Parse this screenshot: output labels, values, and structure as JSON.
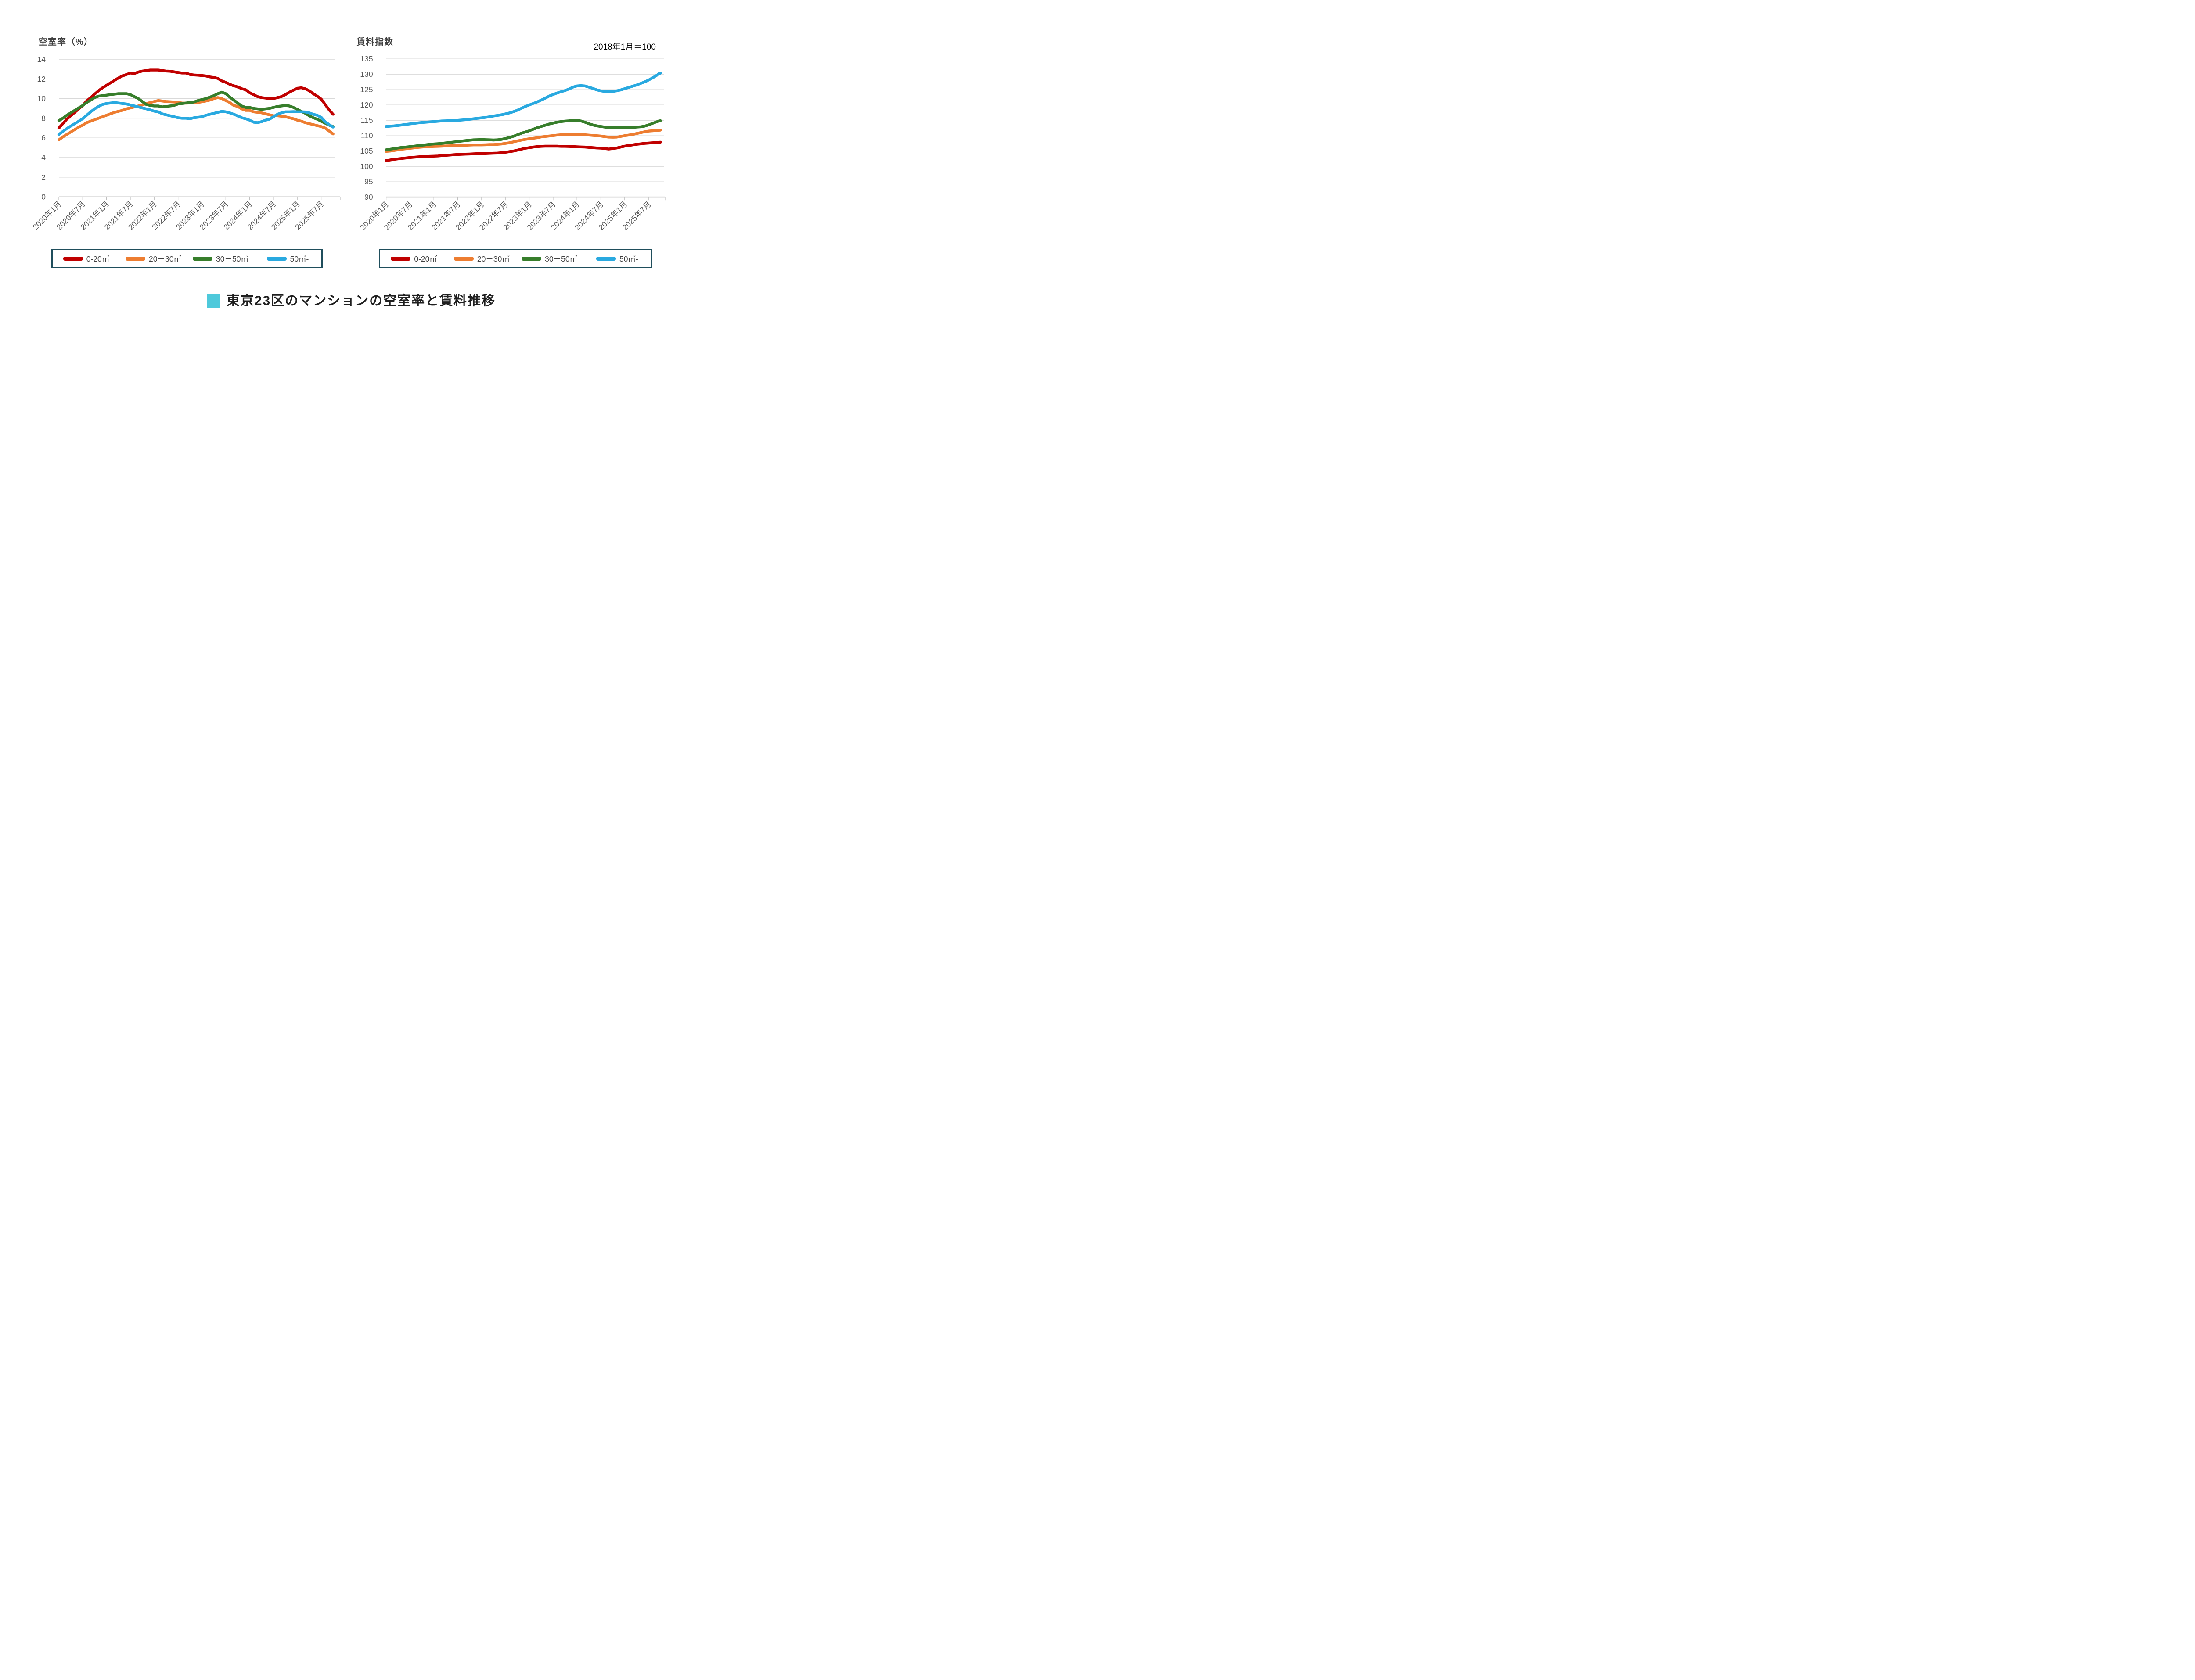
{
  "page": {
    "background": "#ffffff"
  },
  "bottom_title": {
    "text": "東京23区のマンションの空室率と賃料推移",
    "bullet_color": "#4ec9db"
  },
  "colors": {
    "red": "#c00000",
    "orange": "#ed7d31",
    "green": "#377e2b",
    "blue": "#29a9e0",
    "gridline": "#d9d9d9",
    "tick_text": "#595959",
    "legend_border": "#1f4e5c"
  },
  "chart_data": [
    {
      "type": "line",
      "title": "空室率（%）",
      "ylabel": "",
      "ylim": [
        0,
        14
      ],
      "yticks": [
        14,
        12,
        10,
        8,
        6,
        4,
        2,
        0
      ],
      "grid": "horizontal",
      "legend_position": "bottom",
      "x_tick_interval": 6,
      "x_tick_labels": [
        "2020年1月",
        "2020年7月",
        "2021年1月",
        "2021年7月",
        "2022年1月",
        "2022年7月",
        "2023年1月",
        "2023年7月",
        "2024年1月",
        "2024年7月",
        "2025年1月",
        "2025年7月"
      ],
      "x_range_note": "monthly data 2020-01 through 2025-10",
      "series": [
        {
          "name": "0-20㎡",
          "color": "#c00000",
          "values": [
            7.0,
            7.45,
            7.9,
            8.25,
            8.6,
            8.95,
            9.3,
            9.75,
            10.1,
            10.45,
            10.8,
            11.1,
            11.35,
            11.6,
            11.85,
            12.1,
            12.3,
            12.45,
            12.6,
            12.55,
            12.7,
            12.8,
            12.85,
            12.9,
            12.9,
            12.9,
            12.85,
            12.8,
            12.78,
            12.72,
            12.65,
            12.6,
            12.6,
            12.45,
            12.4,
            12.38,
            12.35,
            12.3,
            12.2,
            12.15,
            12.05,
            11.8,
            11.65,
            11.45,
            11.3,
            11.2,
            11.0,
            10.9,
            10.6,
            10.4,
            10.2,
            10.1,
            10.05,
            10.0,
            10.0,
            10.1,
            10.2,
            10.4,
            10.65,
            10.85,
            11.05,
            11.1,
            11.0,
            10.8,
            10.5,
            10.25,
            9.95,
            9.4,
            8.85,
            8.4
          ]
        },
        {
          "name": "20－30㎡",
          "color": "#ed7d31",
          "values": [
            5.8,
            6.1,
            6.35,
            6.6,
            6.85,
            7.1,
            7.3,
            7.55,
            7.7,
            7.85,
            8.0,
            8.15,
            8.3,
            8.45,
            8.6,
            8.7,
            8.8,
            8.95,
            9.05,
            9.15,
            9.25,
            9.35,
            9.5,
            9.6,
            9.7,
            9.8,
            9.75,
            9.7,
            9.68,
            9.65,
            9.6,
            9.55,
            9.53,
            9.55,
            9.57,
            9.6,
            9.68,
            9.75,
            9.85,
            10.0,
            10.1,
            10.0,
            9.8,
            9.6,
            9.3,
            9.2,
            8.95,
            8.8,
            8.8,
            8.65,
            8.6,
            8.55,
            8.45,
            8.35,
            8.25,
            8.25,
            8.2,
            8.15,
            8.05,
            7.95,
            7.8,
            7.7,
            7.55,
            7.45,
            7.35,
            7.25,
            7.15,
            7.0,
            6.7,
            6.4
          ]
        },
        {
          "name": "30－50㎡",
          "color": "#377e2b",
          "values": [
            7.75,
            8.0,
            8.3,
            8.55,
            8.8,
            9.05,
            9.3,
            9.6,
            9.85,
            10.1,
            10.25,
            10.3,
            10.35,
            10.4,
            10.45,
            10.5,
            10.5,
            10.5,
            10.4,
            10.2,
            10.0,
            9.7,
            9.4,
            9.3,
            9.25,
            9.25,
            9.15,
            9.2,
            9.25,
            9.3,
            9.45,
            9.5,
            9.55,
            9.6,
            9.65,
            9.8,
            9.9,
            10.0,
            10.15,
            10.3,
            10.5,
            10.65,
            10.5,
            10.15,
            9.85,
            9.55,
            9.25,
            9.1,
            9.1,
            9.0,
            8.95,
            8.9,
            8.95,
            9.0,
            9.1,
            9.2,
            9.25,
            9.3,
            9.25,
            9.1,
            8.9,
            8.7,
            8.5,
            8.25,
            8.05,
            7.9,
            7.7,
            7.5,
            7.3,
            7.15
          ]
        },
        {
          "name": "50㎡-",
          "color": "#29a9e0",
          "values": [
            6.35,
            6.65,
            6.95,
            7.2,
            7.45,
            7.7,
            7.95,
            8.3,
            8.65,
            8.95,
            9.2,
            9.4,
            9.5,
            9.55,
            9.6,
            9.55,
            9.5,
            9.45,
            9.35,
            9.25,
            9.15,
            9.05,
            8.95,
            8.85,
            8.72,
            8.65,
            8.45,
            8.35,
            8.25,
            8.15,
            8.05,
            8.0,
            8.0,
            7.95,
            8.05,
            8.1,
            8.15,
            8.3,
            8.4,
            8.5,
            8.6,
            8.7,
            8.65,
            8.55,
            8.4,
            8.25,
            8.05,
            7.95,
            7.8,
            7.6,
            7.55,
            7.65,
            7.8,
            7.9,
            8.15,
            8.4,
            8.55,
            8.65,
            8.65,
            8.67,
            8.65,
            8.65,
            8.64,
            8.55,
            8.4,
            8.3,
            8.1,
            7.65,
            7.35,
            7.1
          ]
        }
      ]
    },
    {
      "type": "line",
      "title": "賃料指数",
      "note": "2018年1月＝100",
      "ylabel": "",
      "ylim": [
        90,
        135
      ],
      "yticks": [
        135,
        130,
        125,
        120,
        115,
        110,
        105,
        100,
        95,
        90
      ],
      "grid": "horizontal",
      "legend_position": "bottom",
      "x_tick_interval": 6,
      "x_tick_labels": [
        "2020年1月",
        "2020年7月",
        "2021年1月",
        "2021年7月",
        "2022年1月",
        "2022年7月",
        "2023年1月",
        "2023年7月",
        "2024年1月",
        "2024年7月",
        "2025年1月",
        "2025年7月"
      ],
      "x_range_note": "monthly data 2020-01 through 2025-10",
      "series": [
        {
          "name": "0-20㎡",
          "color": "#c00000",
          "values": [
            101.9,
            102.1,
            102.3,
            102.45,
            102.6,
            102.75,
            102.9,
            103.0,
            103.1,
            103.2,
            103.25,
            103.3,
            103.35,
            103.4,
            103.5,
            103.6,
            103.7,
            103.8,
            103.9,
            103.95,
            104.0,
            104.05,
            104.1,
            104.15,
            104.2,
            104.2,
            104.25,
            104.3,
            104.35,
            104.45,
            104.6,
            104.8,
            105.0,
            105.3,
            105.6,
            105.9,
            106.1,
            106.3,
            106.45,
            106.55,
            106.6,
            106.6,
            106.6,
            106.6,
            106.55,
            106.55,
            106.5,
            106.45,
            106.4,
            106.35,
            106.3,
            106.2,
            106.1,
            106.0,
            105.95,
            105.8,
            105.65,
            105.8,
            106.0,
            106.3,
            106.6,
            106.8,
            107.0,
            107.2,
            107.35,
            107.5,
            107.6,
            107.7,
            107.8,
            107.9
          ]
        },
        {
          "name": "20－30㎡",
          "color": "#ed7d31",
          "values": [
            104.9,
            105.0,
            105.2,
            105.4,
            105.6,
            105.75,
            105.9,
            106.05,
            106.2,
            106.3,
            106.4,
            106.45,
            106.5,
            106.55,
            106.6,
            106.65,
            106.7,
            106.75,
            106.8,
            106.85,
            106.9,
            106.95,
            107.0,
            107.0,
            107.0,
            107.05,
            107.1,
            107.1,
            107.2,
            107.3,
            107.5,
            107.7,
            108.0,
            108.3,
            108.55,
            108.8,
            109.0,
            109.15,
            109.35,
            109.6,
            109.75,
            109.9,
            110.05,
            110.2,
            110.3,
            110.4,
            110.45,
            110.45,
            110.45,
            110.4,
            110.3,
            110.2,
            110.1,
            110.0,
            109.9,
            109.7,
            109.55,
            109.5,
            109.55,
            109.75,
            110.0,
            110.2,
            110.4,
            110.7,
            111.0,
            111.25,
            111.5,
            111.6,
            111.7,
            111.8
          ]
        },
        {
          "name": "30－50㎡",
          "color": "#377e2b",
          "values": [
            105.4,
            105.6,
            105.8,
            106.0,
            106.2,
            106.3,
            106.45,
            106.6,
            106.75,
            106.9,
            107.05,
            107.2,
            107.3,
            107.4,
            107.5,
            107.65,
            107.8,
            107.95,
            108.1,
            108.25,
            108.4,
            108.55,
            108.65,
            108.7,
            108.75,
            108.7,
            108.65,
            108.6,
            108.65,
            108.8,
            109.1,
            109.4,
            109.8,
            110.3,
            110.8,
            111.2,
            111.6,
            112.1,
            112.6,
            113.0,
            113.4,
            113.8,
            114.1,
            114.4,
            114.6,
            114.75,
            114.85,
            114.95,
            115.0,
            114.8,
            114.4,
            113.9,
            113.5,
            113.2,
            113.0,
            112.8,
            112.65,
            112.6,
            112.75,
            112.65,
            112.6,
            112.65,
            112.7,
            112.8,
            112.9,
            113.1,
            113.5,
            114.0,
            114.5,
            114.9
          ]
        },
        {
          "name": "50㎡-",
          "color": "#29a9e0",
          "values": [
            113.0,
            113.1,
            113.2,
            113.35,
            113.5,
            113.7,
            113.85,
            114.0,
            114.15,
            114.3,
            114.4,
            114.5,
            114.6,
            114.7,
            114.8,
            114.85,
            114.9,
            114.95,
            115.0,
            115.1,
            115.2,
            115.35,
            115.5,
            115.65,
            115.8,
            115.95,
            116.15,
            116.4,
            116.6,
            116.8,
            117.1,
            117.4,
            117.8,
            118.3,
            118.9,
            119.5,
            120.0,
            120.5,
            121.0,
            121.6,
            122.2,
            122.9,
            123.4,
            123.9,
            124.3,
            124.7,
            125.2,
            125.8,
            126.2,
            126.3,
            126.2,
            125.8,
            125.4,
            124.9,
            124.6,
            124.4,
            124.3,
            124.4,
            124.6,
            124.9,
            125.3,
            125.7,
            126.1,
            126.5,
            127.0,
            127.5,
            128.1,
            128.8,
            129.6,
            130.4
          ]
        }
      ]
    }
  ]
}
